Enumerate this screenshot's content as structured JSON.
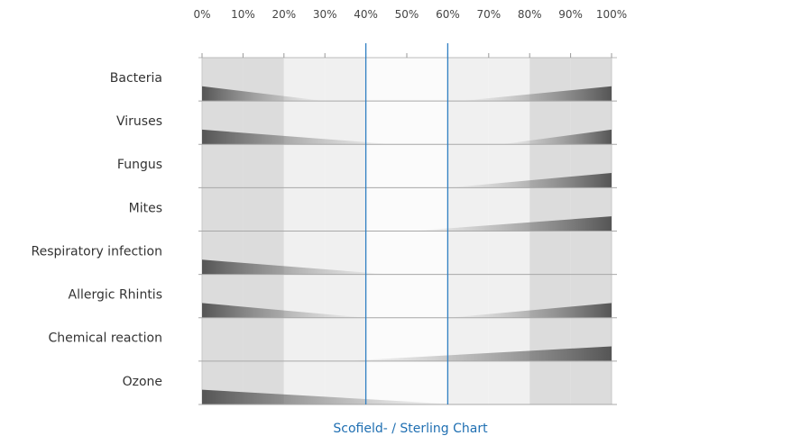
{
  "chart_data": {
    "type": "area",
    "title": "Scofield- / Sterling Chart",
    "x_ticks": [
      "0%",
      "10%",
      "20%",
      "30%",
      "40%",
      "50%",
      "60%",
      "70%",
      "80%",
      "90%",
      "100%"
    ],
    "xlim": [
      0,
      100
    ],
    "optimal_range": [
      40,
      60
    ],
    "categories": [
      "Bacteria",
      "Viruses",
      "Fungus",
      "Mites",
      "Respiratory infection",
      "Allergic Rhintis",
      "Chemical reaction",
      "Ozone"
    ],
    "series": [
      {
        "low_range": [
          0,
          30
        ],
        "high_range": [
          63,
          100
        ]
      },
      {
        "low_range": [
          0,
          47
        ],
        "high_range": [
          73,
          100
        ]
      },
      {
        "low_range": null,
        "high_range": [
          60,
          100
        ]
      },
      {
        "low_range": null,
        "high_range": [
          51,
          100
        ]
      },
      {
        "low_range": [
          0,
          46
        ],
        "high_range": null
      },
      {
        "low_range": [
          0,
          40
        ],
        "high_range": [
          60,
          100
        ]
      },
      {
        "low_range": null,
        "high_range": [
          34,
          100
        ]
      },
      {
        "low_range": [
          0,
          63
        ],
        "high_range": null
      }
    ]
  },
  "colors": {
    "guide_line": "#2f7fc2",
    "caption": "#1f6fb2",
    "wedge_dark": "#555555",
    "band_edge": "#dcdcdc",
    "band_mid": "#f0f0f0",
    "band_center": "#fbfbfb"
  }
}
